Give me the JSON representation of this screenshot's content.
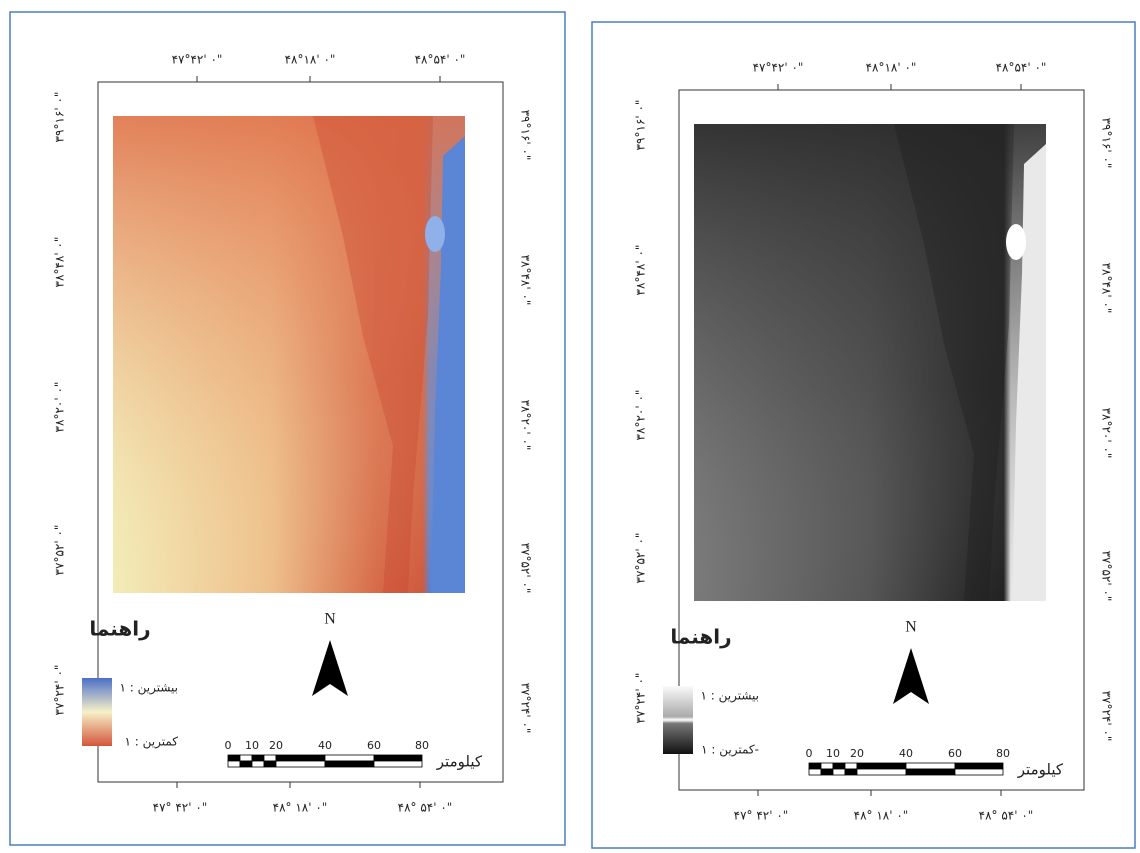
{
  "panels": [
    {
      "top_labels": [
        "۴۷°۴۲' ۰\"",
        "۴۸°۱۸' ۰\"",
        "۴۸°۵۴' ۰\""
      ],
      "bottom_labels": [
        "۴۷° ۴۲' ۰\"",
        "۴۸° ۱۸' ۰\"",
        "۴۸° ۵۴' ۰\""
      ],
      "left_labels": [
        "۳۹°۱۶' ۰\"",
        "۳۸°۴۸' ۰\"",
        "۳۸°۲۰' ۰\"",
        "۳۷°۵۲' ۰\"",
        "۳۷°۲۴' ۰\""
      ],
      "right_labels": [
        "۳۹°۱۶' ۰\"",
        "۳۸°۴۸' ۰\"",
        "۳۸°۲۰' ۰\"",
        "۳۷°۵۲' ۰\"",
        "۳۷°۲۴' ۰\""
      ],
      "legend": {
        "title": "راهنما",
        "max_label": "بیشترین : ۱",
        "min_label": "کمترین : ۱"
      },
      "north": "N",
      "scale_bar": {
        "ticks": [
          "0",
          "10",
          "20",
          "40",
          "60",
          "80"
        ],
        "unit": "کیلومتر"
      }
    },
    {
      "top_labels": [
        "۴۷°۴۲' ۰\"",
        "۴۸°۱۸' ۰\"",
        "۴۸°۵۴' ۰\""
      ],
      "bottom_labels": [
        "۴۷° ۴۲' ۰\"",
        "۴۸° ۱۸' ۰\"",
        "۴۸° ۵۴' ۰\""
      ],
      "left_labels": [
        "۳۹°۱۶' ۰\"",
        "۳۸°۴۸' ۰\"",
        "۳۸°۲۰' ۰\"",
        "۳۷°۵۲' ۰\"",
        "۳۷°۲۴' ۰\""
      ],
      "right_labels": [
        "۳۹°۱۶' ۰\"",
        "۳۸°۴۸' ۰\"",
        "۳۸°۲۰' ۰\"",
        "۳۷°۵۲' ۰\"",
        "۳۷°۲۴' ۰\""
      ],
      "legend": {
        "title": "راهنما",
        "max_label": "بیشترین : ۱",
        "min_label": "کمترین : ۱-"
      },
      "north": "N",
      "scale_bar": {
        "ticks": [
          "0",
          "10",
          "20",
          "40",
          "60",
          "80"
        ],
        "unit": "کیلومتر"
      }
    }
  ]
}
